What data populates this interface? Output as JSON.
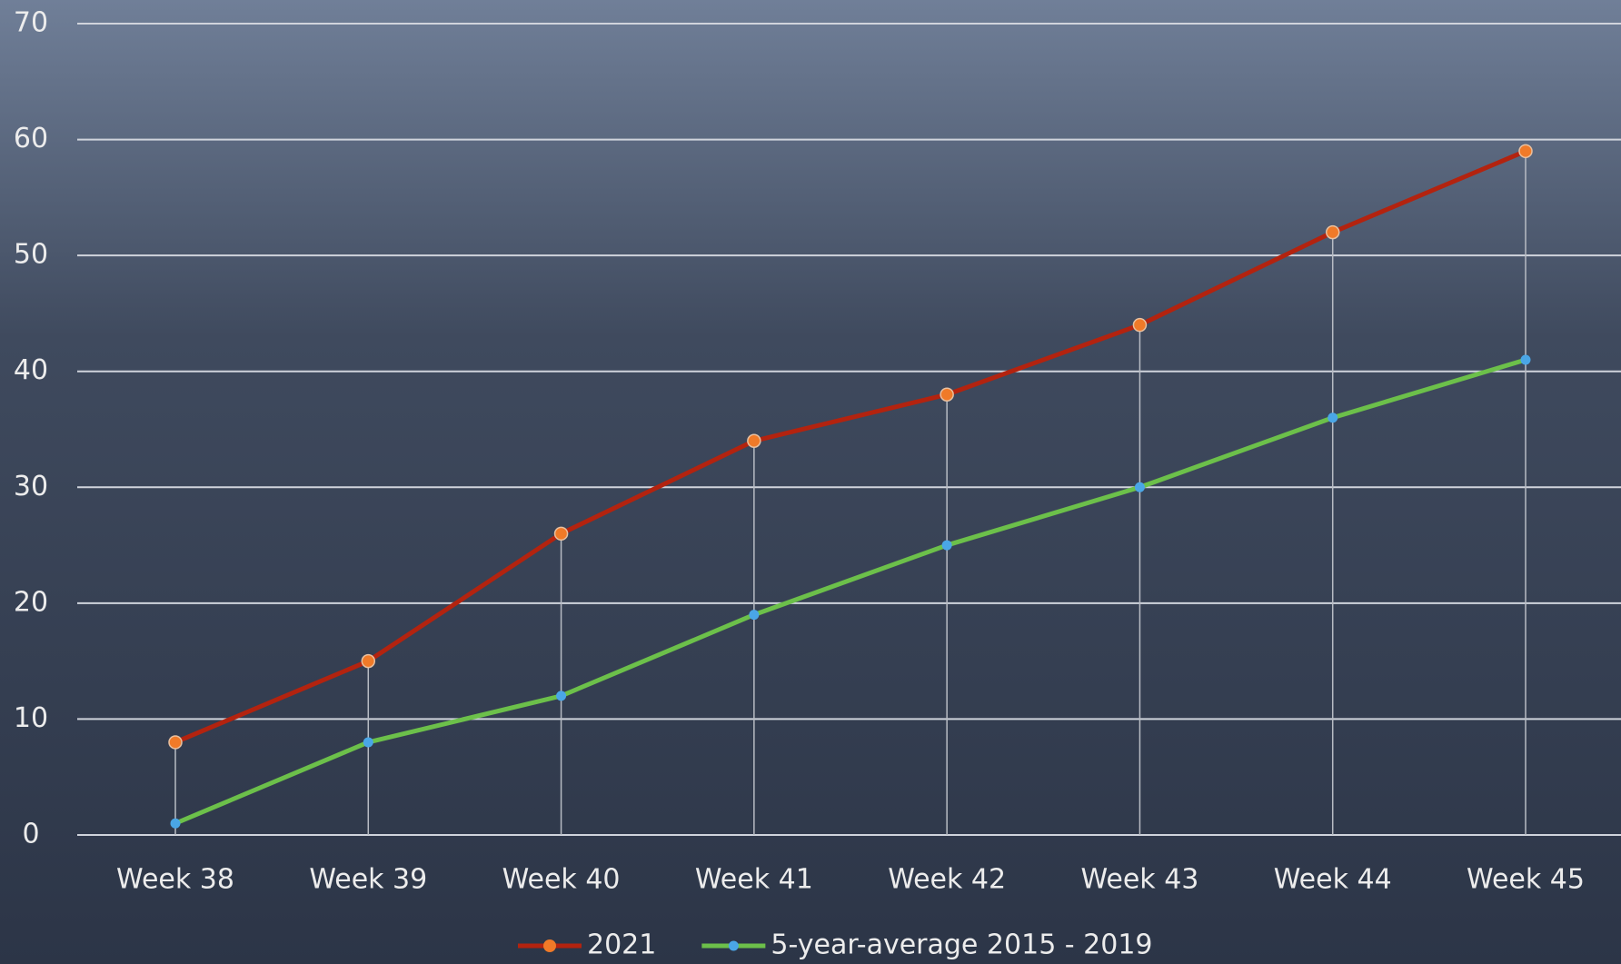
{
  "chart_data": {
    "type": "line",
    "categories": [
      "Week 38",
      "Week 39",
      "Week 40",
      "Week 41",
      "Week 42",
      "Week 43",
      "Week 44",
      "Week 45"
    ],
    "series": [
      {
        "name": "2021",
        "color": "#b3230f",
        "marker_color": "#f07a28",
        "values": [
          8,
          15,
          26,
          34,
          38,
          44,
          52,
          59
        ]
      },
      {
        "name": "5-year-average 2015 - 2019",
        "color": "#6cc04a",
        "marker_color": "#4aa6e6",
        "values": [
          1,
          8,
          12,
          19,
          25,
          30,
          36,
          41
        ]
      }
    ],
    "ylim": [
      0,
      70
    ],
    "yticks": [
      0,
      10,
      20,
      30,
      40,
      50,
      60,
      70
    ],
    "grid": true,
    "drop_lines": true,
    "legend": "bottom"
  }
}
